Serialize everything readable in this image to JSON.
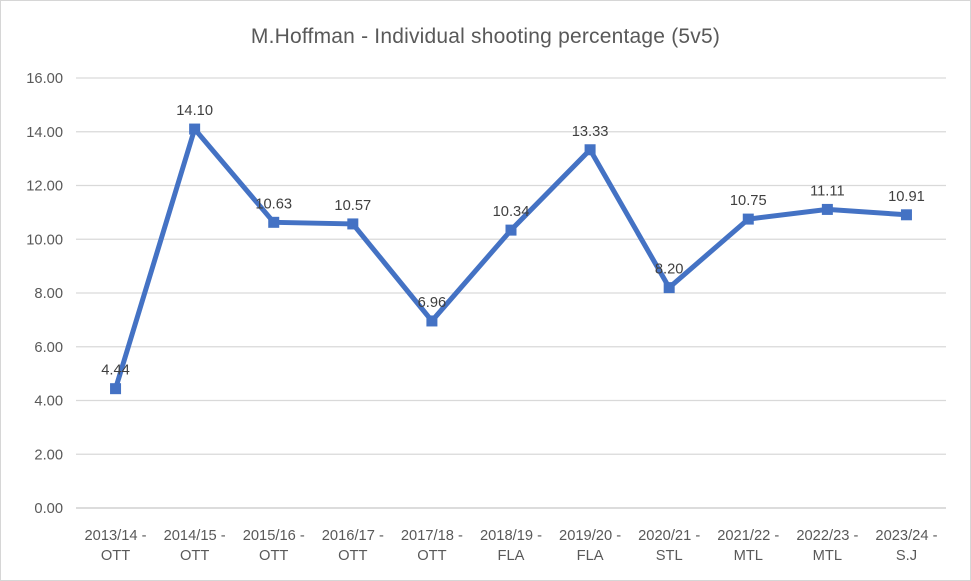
{
  "window": {
    "background": "#ffffff",
    "border_color": "#d6d6d6"
  },
  "chart_data": {
    "type": "line",
    "title": "M.Hoffman - Individual shooting percentage (5v5)",
    "categories": [
      "2013/14 - OTT",
      "2014/15 - OTT",
      "2015/16 - OTT",
      "2016/17 - OTT",
      "2017/18 - OTT",
      "2018/19 - FLA",
      "2019/20 - FLA",
      "2020/21 - STL",
      "2021/22 - MTL",
      "2022/23 - MTL",
      "2023/24 - S.J"
    ],
    "values": [
      4.44,
      14.1,
      10.63,
      10.57,
      6.96,
      10.34,
      13.33,
      8.2,
      10.75,
      11.11,
      10.91
    ],
    "data_labels": [
      "4.44",
      "14.10",
      "10.63",
      "10.57",
      "6.96",
      "10.34",
      "13.33",
      "8.20",
      "10.75",
      "11.11",
      "10.91"
    ],
    "xlabel": "",
    "ylabel": "",
    "ylim": [
      0,
      16
    ],
    "ytick_step": 2,
    "ytick_labels": [
      "0.00",
      "2.00",
      "4.00",
      "6.00",
      "8.00",
      "10.00",
      "12.00",
      "14.00",
      "16.00"
    ],
    "grid": true,
    "legend": "none",
    "marker": "square",
    "colors": {
      "line": "#4472c4",
      "marker": "#4472c4",
      "gridline": "#d9d9d9",
      "axis_line": "#c8c8c8",
      "axis_text": "#595959",
      "data_label_text": "#404040",
      "title_text": "#595959"
    }
  }
}
